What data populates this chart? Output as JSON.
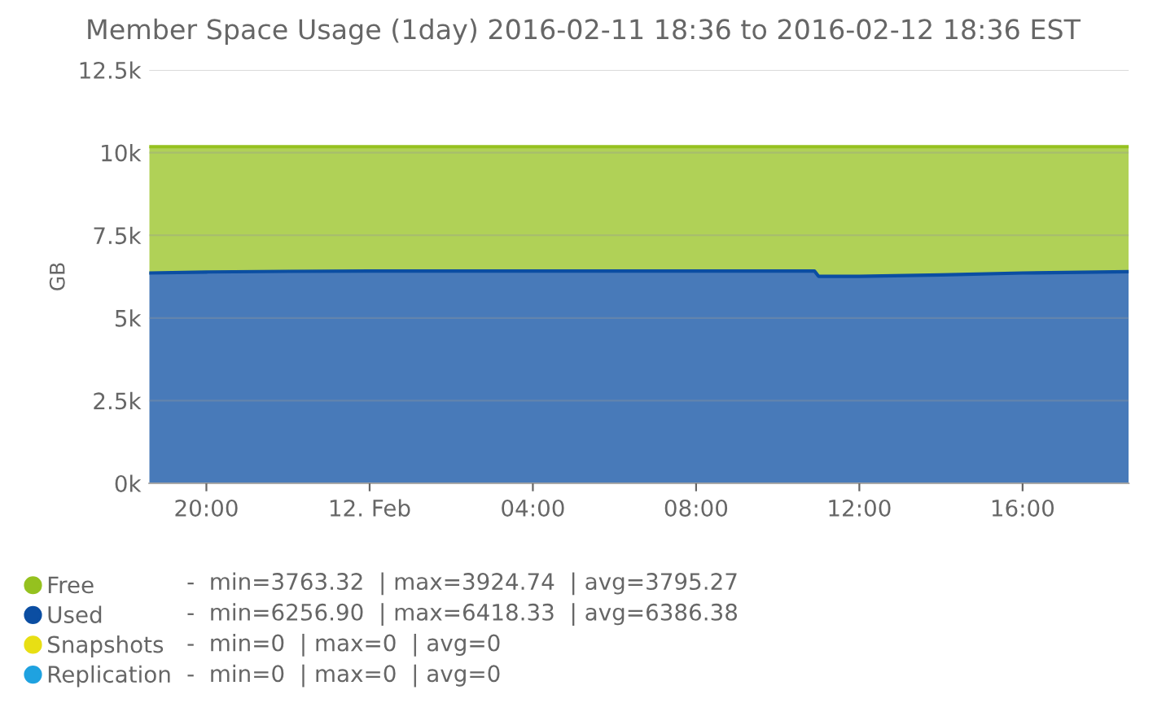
{
  "chart_data": {
    "type": "area",
    "stacked": true,
    "title": "Member Space Usage (1day) 2016-02-11 18:36 to 2016-02-12 18:36 EST",
    "ylabel": "GB",
    "x": [
      "2016-02-11T18:36",
      "2016-02-11T20:00",
      "2016-02-11T22:00",
      "2016-02-12T00:00",
      "2016-02-12T04:00",
      "2016-02-12T08:00",
      "2016-02-12T10:54",
      "2016-02-12T11:00",
      "2016-02-12T12:00",
      "2016-02-12T14:00",
      "2016-02-12T16:00",
      "2016-02-12T18:36"
    ],
    "series": [
      {
        "name": "Replication",
        "color": "#1fa2e0",
        "values": [
          null,
          null,
          null,
          null,
          null,
          null,
          null,
          null,
          null,
          null,
          null,
          null
        ]
      },
      {
        "name": "Snapshots",
        "color": "#e8df14",
        "values": [
          null,
          null,
          null,
          null,
          null,
          null,
          null,
          null,
          null,
          null,
          null,
          null
        ]
      },
      {
        "name": "Used",
        "color": "#0b4ea2",
        "values": [
          6360,
          6390,
          6410,
          6420,
          6420,
          6420,
          6420,
          6260,
          6260,
          6300,
          6360,
          6400
        ]
      },
      {
        "name": "Free",
        "color": "#95c11f",
        "values": [
          3820,
          3790,
          3770,
          3760,
          3760,
          3760,
          3760,
          3920,
          3920,
          3880,
          3820,
          3780
        ]
      }
    ],
    "xlim": [
      "2016-02-11T18:36",
      "2016-02-12T18:36"
    ],
    "xticks": [
      {
        "value": "2016-02-11T20:00",
        "label": "20:00"
      },
      {
        "value": "2016-02-12T00:00",
        "label": "12. Feb"
      },
      {
        "value": "2016-02-12T04:00",
        "label": "04:00"
      },
      {
        "value": "2016-02-12T08:00",
        "label": "08:00"
      },
      {
        "value": "2016-02-12T12:00",
        "label": "12:00"
      },
      {
        "value": "2016-02-12T16:00",
        "label": "16:00"
      }
    ],
    "ylim": [
      0,
      12500
    ],
    "yticks": [
      {
        "value": 0,
        "label": "0k"
      },
      {
        "value": 2500,
        "label": "2.5k"
      },
      {
        "value": 5000,
        "label": "5k"
      },
      {
        "value": 7500,
        "label": "7.5k"
      },
      {
        "value": 10000,
        "label": "10k"
      },
      {
        "value": 12500,
        "label": "12.5k"
      }
    ],
    "grid": "y",
    "legend": "bottom left",
    "annotations": [
      "-  min=3763.32  | max=3924.74  | avg=3795.27",
      "-  min=6256.90  | max=6418.33  | avg=6386.38",
      "-  min=0  | max=0  | avg=0",
      "-  min=0  | max=0  | avg=0"
    ]
  }
}
